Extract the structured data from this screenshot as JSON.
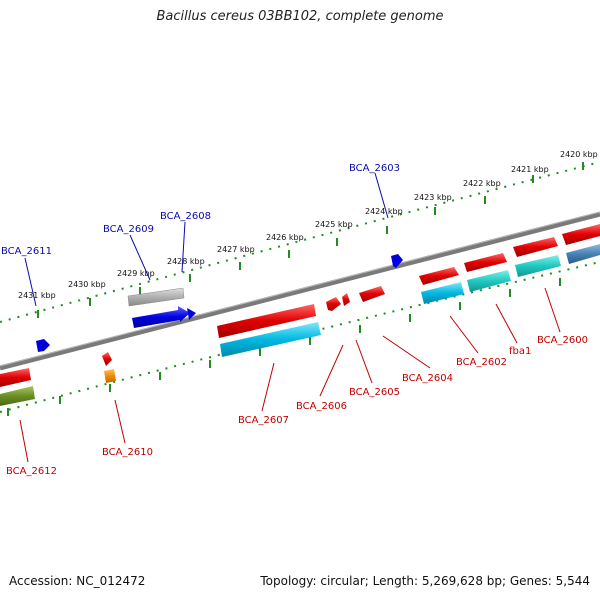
{
  "title": "Bacillus cereus 03BB102, complete genome",
  "footer": {
    "accession": "Accession: NC_012472",
    "topology": "Topology: circular; Length: 5,269,628 bp; Genes: 5,544"
  },
  "scale_labels": [
    "2420 kbp",
    "2421 kbp",
    "2422 kbp",
    "2423 kbp",
    "2424 kbp",
    "2425 kbp",
    "2426 kbp",
    "2427 kbp",
    "2428 kbp",
    "2429 kbp",
    "2430 kbp",
    "2431 kbp"
  ],
  "gene_labels_top": [
    "BCA_2603",
    "BCA_2608",
    "BCA_2609",
    "BCA_2611"
  ],
  "gene_labels_bottom": [
    "BCA_2600",
    "fba1",
    "BCA_2602",
    "BCA_2604",
    "BCA_2605",
    "BCA_2606",
    "BCA_2607",
    "BCA_2610",
    "BCA_2612"
  ],
  "colors": {
    "backbone": "#808080",
    "gene_forward": "#e00000",
    "gene_cds": "#00b8d8",
    "gene_blue": "#0000dd",
    "gene_gray": "#b0b0b0",
    "gene_olive": "#6b8e23",
    "gene_orange": "#f08c00",
    "gene_steel": "#4682b4",
    "tick": "#228b22",
    "label_blue": "#0a0aaa",
    "label_red": "#c00000"
  }
}
